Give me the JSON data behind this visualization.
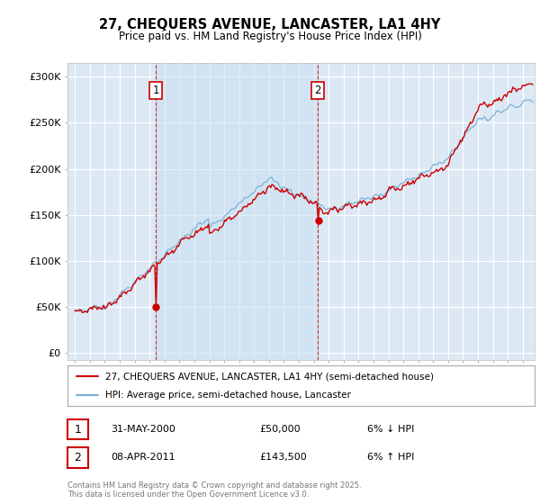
{
  "title_line1": "27, CHEQUERS AVENUE, LANCASTER, LA1 4HY",
  "title_line2": "Price paid vs. HM Land Registry's House Price Index (HPI)",
  "background_color": "#ffffff",
  "plot_bg_color": "#dce9f5",
  "grid_color": "#ffffff",
  "hpi_color": "#7ab0d4",
  "price_color": "#cc0000",
  "vline_color": "#cc0000",
  "purchase1": {
    "date": "31-MAY-2000",
    "price": "£50,000",
    "hpi_pct": "6% ↓ HPI",
    "year": 2000.42
  },
  "purchase2": {
    "date": "08-APR-2011",
    "price": "£143,500",
    "hpi_pct": "6% ↑ HPI",
    "year": 2011.27
  },
  "purchase1_val": 50000,
  "purchase2_val": 143500,
  "legend_label1": "27, CHEQUERS AVENUE, LANCASTER, LA1 4HY (semi-detached house)",
  "legend_label2": "HPI: Average price, semi-detached house, Lancaster",
  "footer": "Contains HM Land Registry data © Crown copyright and database right 2025.\nThis data is licensed under the Open Government Licence v3.0.",
  "yticks": [
    0,
    50000,
    100000,
    150000,
    200000,
    250000,
    300000
  ],
  "ytick_labels": [
    "£0",
    "£50K",
    "£100K",
    "£150K",
    "£200K",
    "£250K",
    "£300K"
  ],
  "xlim_start": 1994.5,
  "xlim_end": 2025.8,
  "ylim": [
    -8000,
    315000
  ],
  "shade_color": "#c8dff0",
  "shade_alpha": 0.5
}
